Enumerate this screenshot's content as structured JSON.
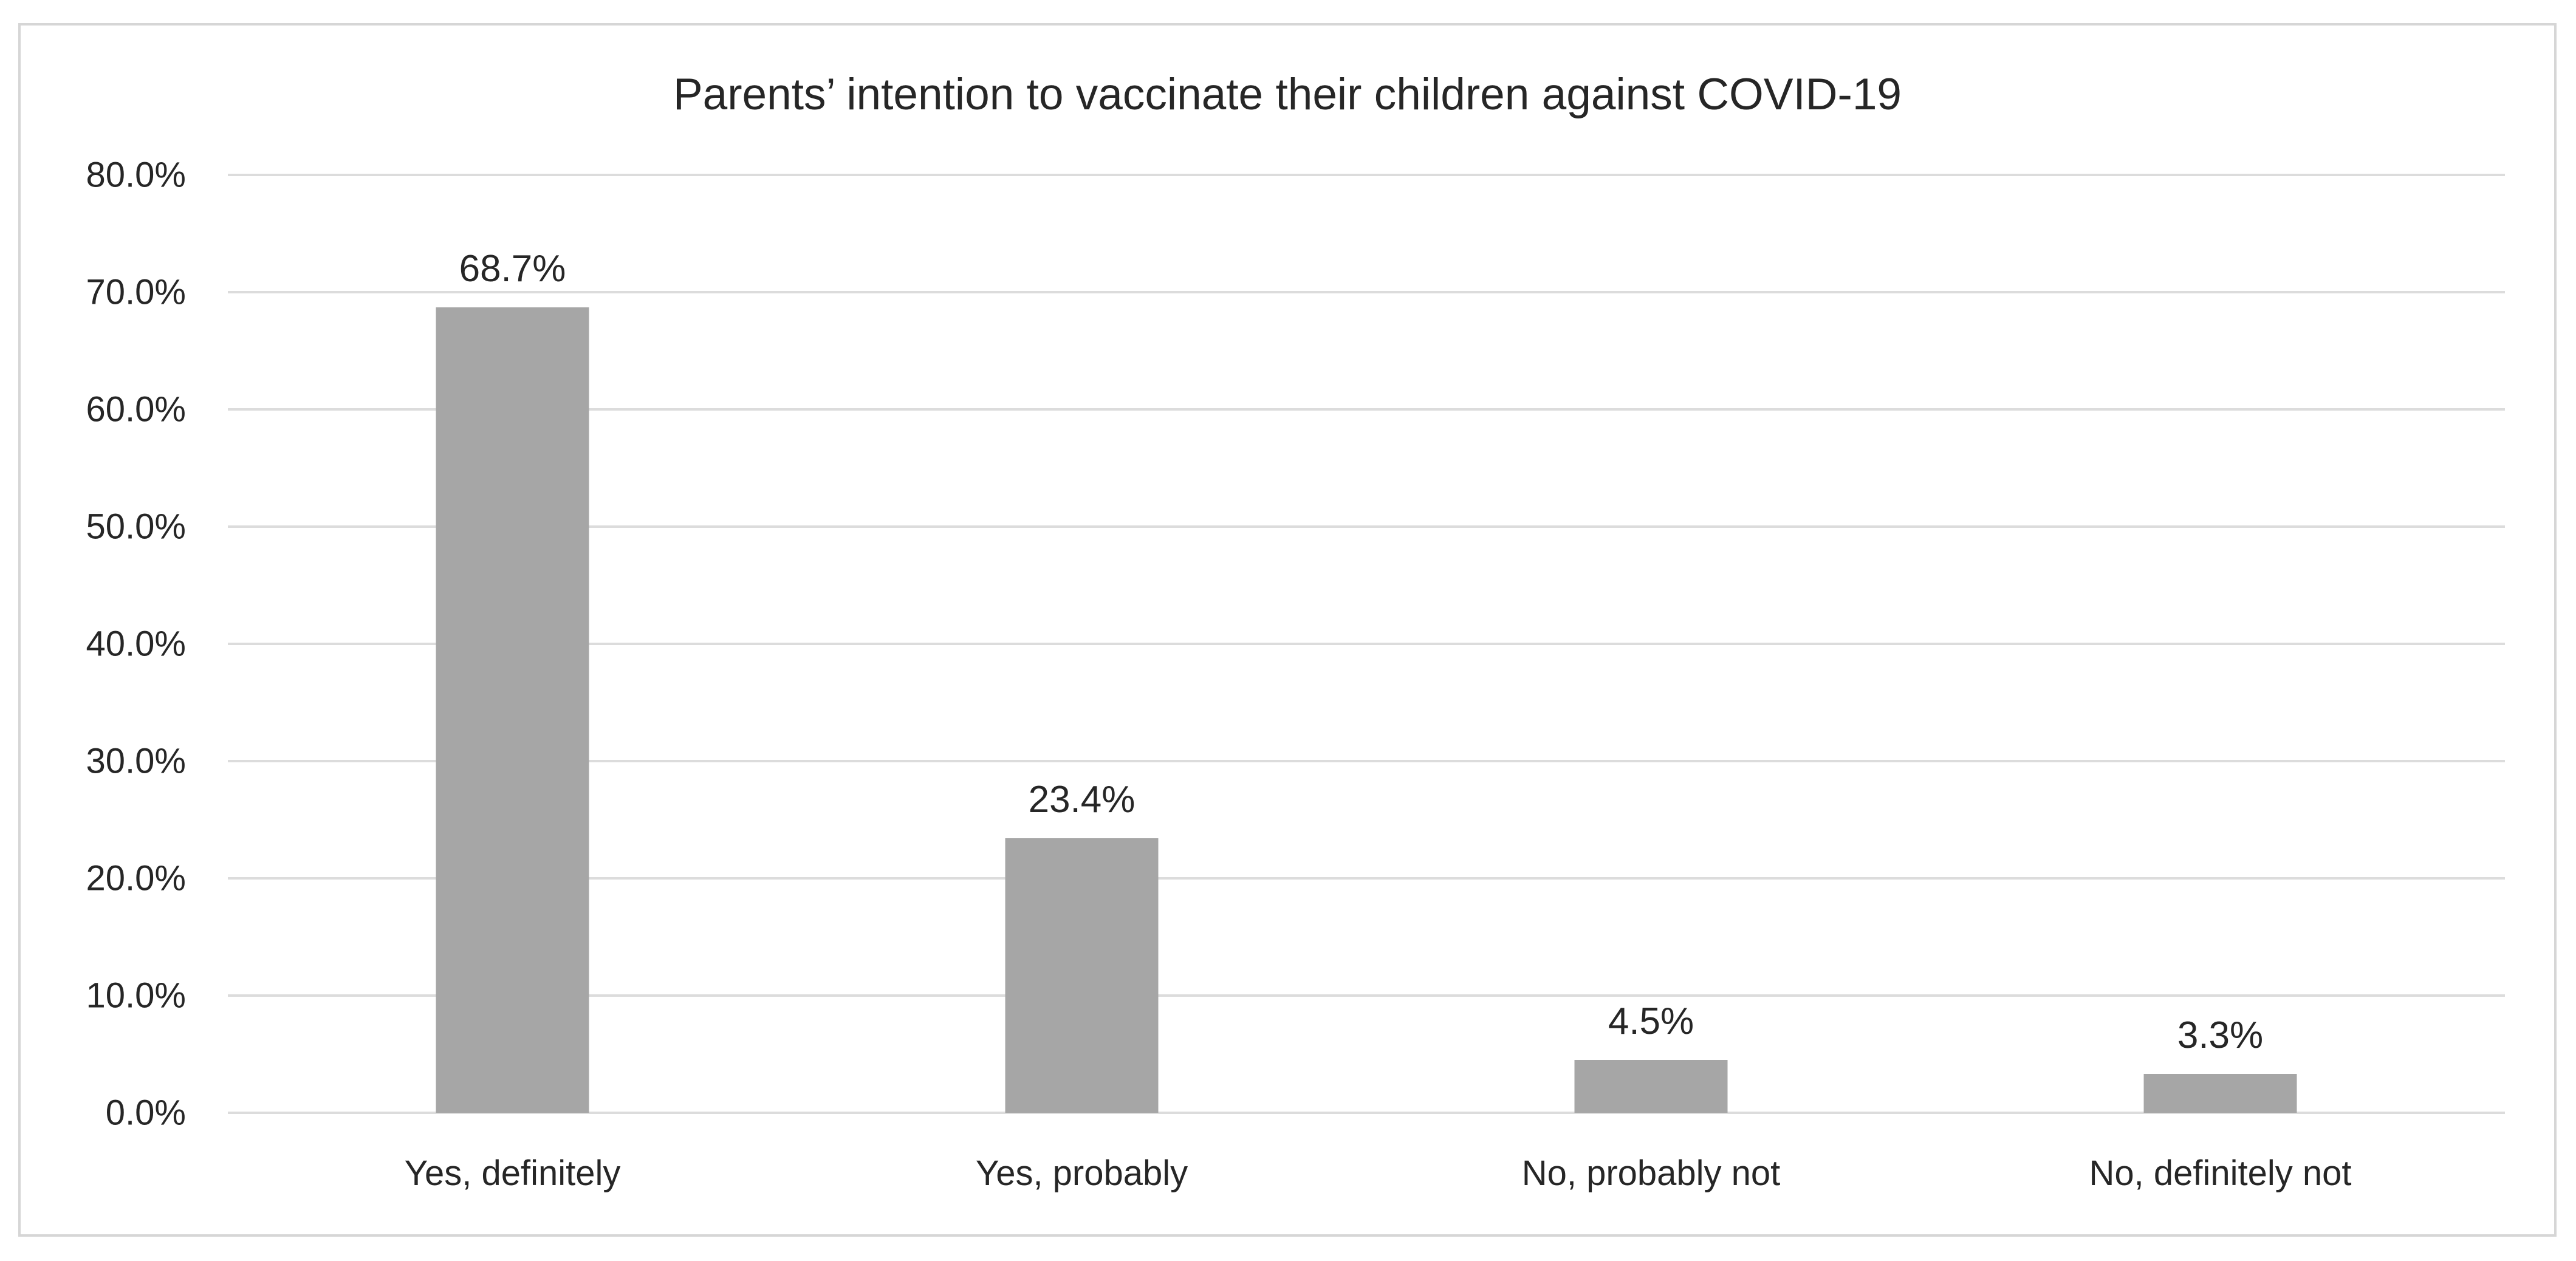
{
  "chart_data": {
    "type": "bar",
    "title": "Parents’ intention to vaccinate their children against COVID-19",
    "categories": [
      "Yes, definitely",
      "Yes, probably",
      "No, probably not",
      "No, definitely not"
    ],
    "values": [
      68.7,
      23.4,
      4.5,
      3.3
    ],
    "value_labels": [
      "68.7%",
      "23.4%",
      "4.5%",
      "3.3%"
    ],
    "xlabel": "",
    "ylabel": "",
    "ylim": [
      0,
      80
    ],
    "ytick_step": 10,
    "ytick_labels": [
      "0.0%",
      "10.0%",
      "20.0%",
      "30.0%",
      "40.0%",
      "50.0%",
      "60.0%",
      "70.0%",
      "80.0%"
    ],
    "grid": true,
    "legend_position": "none",
    "colors": {
      "bar_fill": "#A6A6A6",
      "gridline": "#DCDCDC",
      "frame_border": "#D6D6D6",
      "text": "#262626",
      "background": "#FFFFFF"
    }
  }
}
